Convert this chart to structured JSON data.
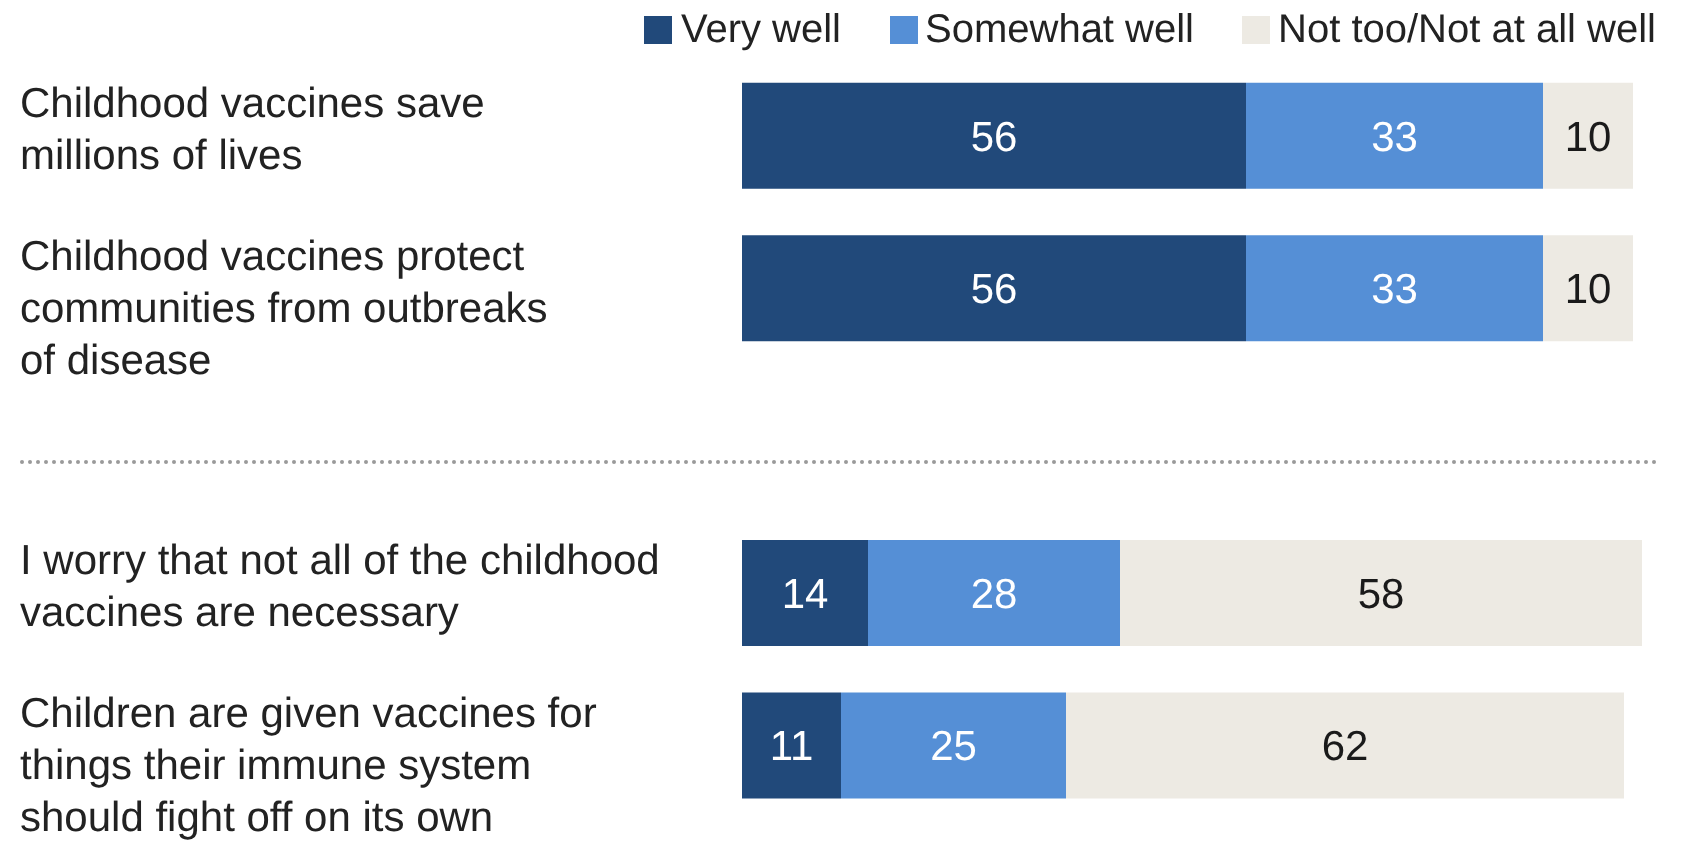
{
  "chart_data": {
    "type": "bar",
    "orientation": "horizontal",
    "stacked": true,
    "categories": [
      "Childhood vaccines save\nmillions of lives",
      "Childhood vaccines protect\ncommunities from outbreaks\nof disease",
      null,
      "I worry that not all of the childhood\nvaccines are necessary",
      "Children are given vaccines for\nthings their immune system\nshould fight off on its own"
    ],
    "series": [
      {
        "name": "Very well",
        "color": "#21497a",
        "values": [
          56,
          56,
          null,
          14,
          11
        ]
      },
      {
        "name": "Somewhat well",
        "color": "#558fd6",
        "values": [
          33,
          33,
          null,
          28,
          25
        ]
      },
      {
        "name": "Not too/Not at all well",
        "color": "#edeae3",
        "values": [
          10,
          10,
          null,
          58,
          62
        ]
      }
    ],
    "data_labels": true,
    "legend": "top right",
    "tick_labels": "y"
  }
}
